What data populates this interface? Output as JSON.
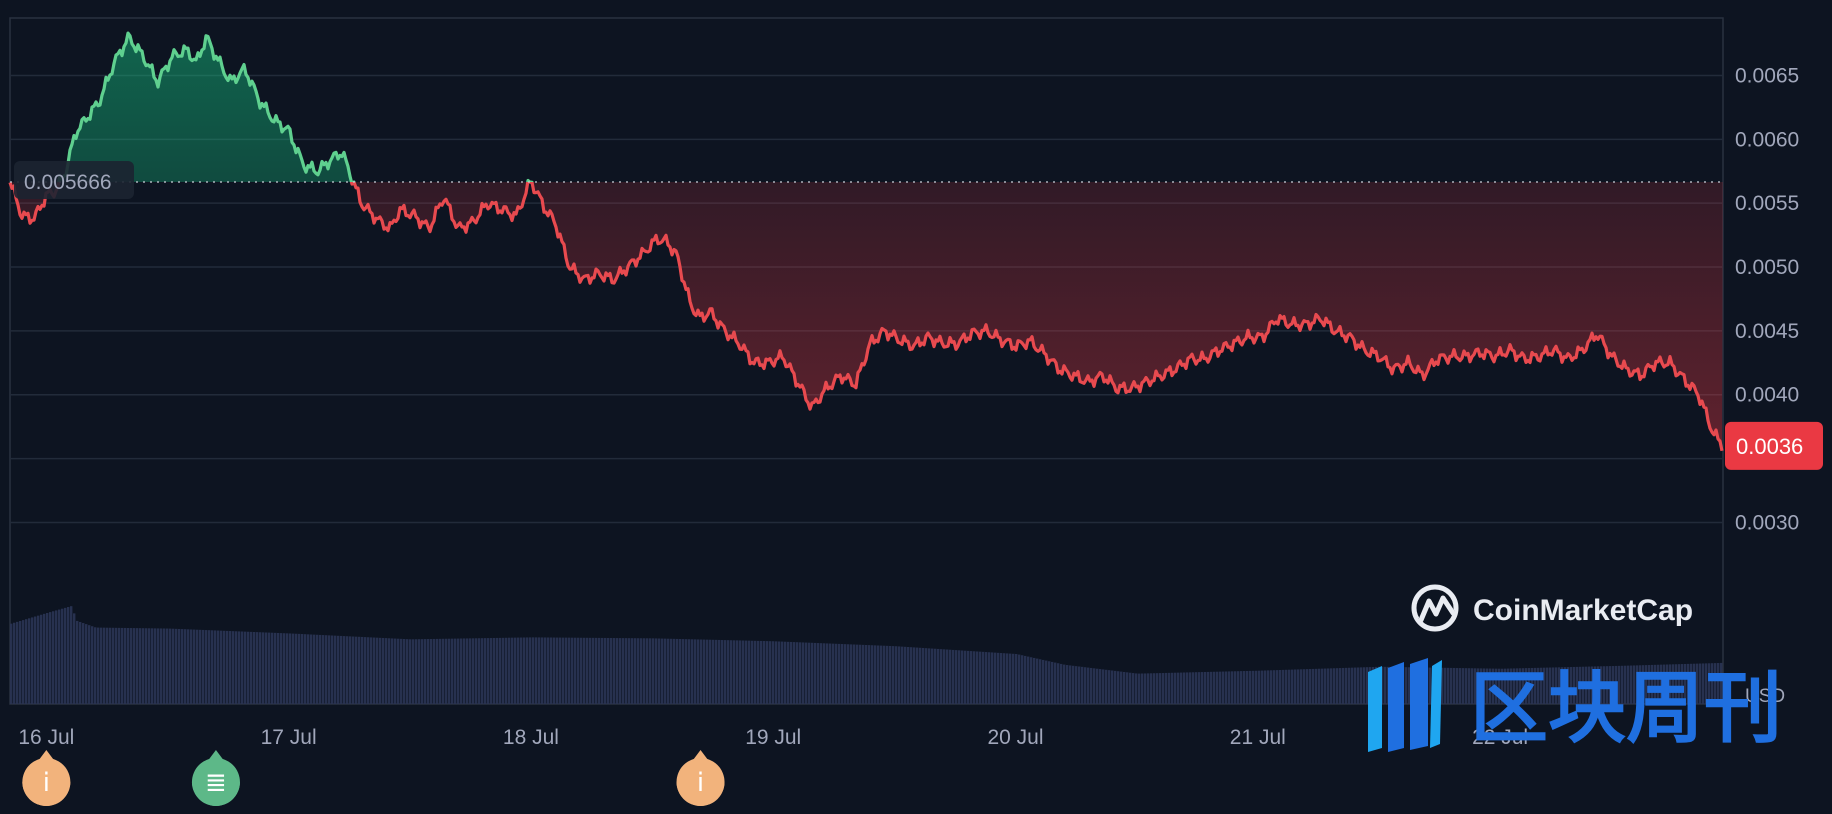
{
  "chart_data": {
    "type": "area",
    "currency": "USD",
    "open_price_label": "0.005666",
    "open_price": 0.005666,
    "current_price_label": "0.0036",
    "current_price": 0.0036,
    "y_ticks": [
      "0.0065",
      "0.0060",
      "0.0055",
      "0.0050",
      "0.0045",
      "0.0040",
      "0.0035",
      "0.0030"
    ],
    "y_tick_values": [
      0.0065,
      0.006,
      0.0055,
      0.005,
      0.0045,
      0.004,
      0.0035,
      0.003
    ],
    "ylim": [
      0.0028,
      0.00695
    ],
    "x_ticks": [
      "16 Jul",
      "17 Jul",
      "18 Jul",
      "19 Jul",
      "20 Jul",
      "21 Jul",
      "22 Jul"
    ],
    "x_range_days": [
      15.85,
      22.92
    ],
    "colors": {
      "up": "#16c784",
      "down": "#ea3943",
      "background": "#0d1421",
      "grid": "#222b3a",
      "volume": "#2a3454"
    },
    "price_series": {
      "x": [
        15.85,
        15.9,
        15.95,
        16.0,
        16.04,
        16.08,
        16.12,
        16.18,
        16.22,
        16.28,
        16.34,
        16.4,
        16.46,
        16.52,
        16.58,
        16.62,
        16.66,
        16.7,
        16.76,
        16.82,
        16.88,
        16.94,
        17.0,
        17.06,
        17.12,
        17.18,
        17.22,
        17.26,
        17.3,
        17.34,
        17.38,
        17.42,
        17.46,
        17.52,
        17.58,
        17.64,
        17.7,
        17.76,
        17.82,
        17.88,
        17.94,
        18.0,
        18.02,
        18.06,
        18.1,
        18.16,
        18.22,
        18.28,
        18.34,
        18.4,
        18.46,
        18.52,
        18.56,
        18.6,
        18.66,
        18.7,
        18.74,
        18.8,
        18.86,
        18.92,
        18.98,
        19.04,
        19.1,
        19.16,
        19.22,
        19.28,
        19.34,
        19.4,
        19.46,
        19.52,
        19.58,
        19.64,
        19.7,
        19.76,
        19.82,
        19.88,
        19.94,
        20.0,
        20.06,
        20.12,
        20.18,
        20.24,
        20.3,
        20.36,
        20.42,
        20.48,
        20.54,
        20.6,
        20.66,
        20.72,
        20.78,
        20.84,
        20.9,
        20.96,
        21.02,
        21.08,
        21.14,
        21.2,
        21.26,
        21.32,
        21.38,
        21.44,
        21.5,
        21.56,
        21.62,
        21.68,
        21.74,
        21.8,
        21.86,
        21.92,
        21.98,
        22.04,
        22.1,
        22.16,
        22.22,
        22.28,
        22.34,
        22.4,
        22.46,
        22.52,
        22.58,
        22.64,
        22.7,
        22.76,
        22.82,
        22.88,
        22.92
      ],
      "y": [
        0.00567,
        0.0054,
        0.00538,
        0.00556,
        0.0056,
        0.00575,
        0.00605,
        0.0062,
        0.0063,
        0.0066,
        0.0068,
        0.00665,
        0.00645,
        0.00665,
        0.0067,
        0.0066,
        0.0068,
        0.00665,
        0.00645,
        0.00655,
        0.0063,
        0.00615,
        0.00607,
        0.0058,
        0.00575,
        0.00585,
        0.0059,
        0.0057,
        0.0055,
        0.00542,
        0.00535,
        0.0053,
        0.00545,
        0.0054,
        0.0053,
        0.00555,
        0.0053,
        0.00535,
        0.0055,
        0.00545,
        0.0054,
        0.00568,
        0.0056,
        0.00545,
        0.00535,
        0.005,
        0.0049,
        0.00495,
        0.0049,
        0.005,
        0.0051,
        0.00522,
        0.0052,
        0.0051,
        0.0047,
        0.0046,
        0.00465,
        0.0045,
        0.0044,
        0.00425,
        0.00425,
        0.0043,
        0.0041,
        0.0039,
        0.00405,
        0.00415,
        0.00408,
        0.0044,
        0.0045,
        0.00443,
        0.00438,
        0.00445,
        0.0044,
        0.0044,
        0.00448,
        0.0045,
        0.00443,
        0.00438,
        0.00442,
        0.00432,
        0.0042,
        0.00415,
        0.0041,
        0.00415,
        0.00405,
        0.00405,
        0.0041,
        0.00415,
        0.0042,
        0.00428,
        0.00428,
        0.00435,
        0.0044,
        0.00445,
        0.00445,
        0.0046,
        0.00455,
        0.00455,
        0.0046,
        0.0045,
        0.00445,
        0.00435,
        0.0043,
        0.0042,
        0.00425,
        0.00415,
        0.00428,
        0.0043,
        0.0043,
        0.00433,
        0.0043,
        0.00435,
        0.00428,
        0.0043,
        0.00435,
        0.00428,
        0.00435,
        0.00448,
        0.0043,
        0.0042,
        0.00415,
        0.00425,
        0.00425,
        0.00412,
        0.004,
        0.0037,
        0.0036
      ]
    },
    "volume_series": {
      "x": [
        15.85,
        16.0,
        16.1,
        16.12,
        16.2,
        16.5,
        17.0,
        17.5,
        18.0,
        18.5,
        19.0,
        19.5,
        20.0,
        20.2,
        20.5,
        21.0,
        21.5,
        22.0,
        22.5,
        22.92
      ],
      "v": [
        0.82,
        0.93,
        1.0,
        0.85,
        0.78,
        0.77,
        0.72,
        0.66,
        0.68,
        0.67,
        0.64,
        0.59,
        0.51,
        0.4,
        0.31,
        0.34,
        0.38,
        0.36,
        0.39,
        0.42
      ]
    }
  },
  "events": [
    {
      "name": "info-marker",
      "glyph": "i",
      "color": "#f2b37c",
      "day": 16.0
    },
    {
      "name": "news-marker",
      "glyph": "≣",
      "color": "#5db888",
      "day": 16.7
    },
    {
      "name": "info-marker",
      "glyph": "i",
      "color": "#f2b37c",
      "day": 18.7
    }
  ],
  "watermark": {
    "brand": "CoinMarketCap",
    "overlay_text": "区块周刊"
  }
}
